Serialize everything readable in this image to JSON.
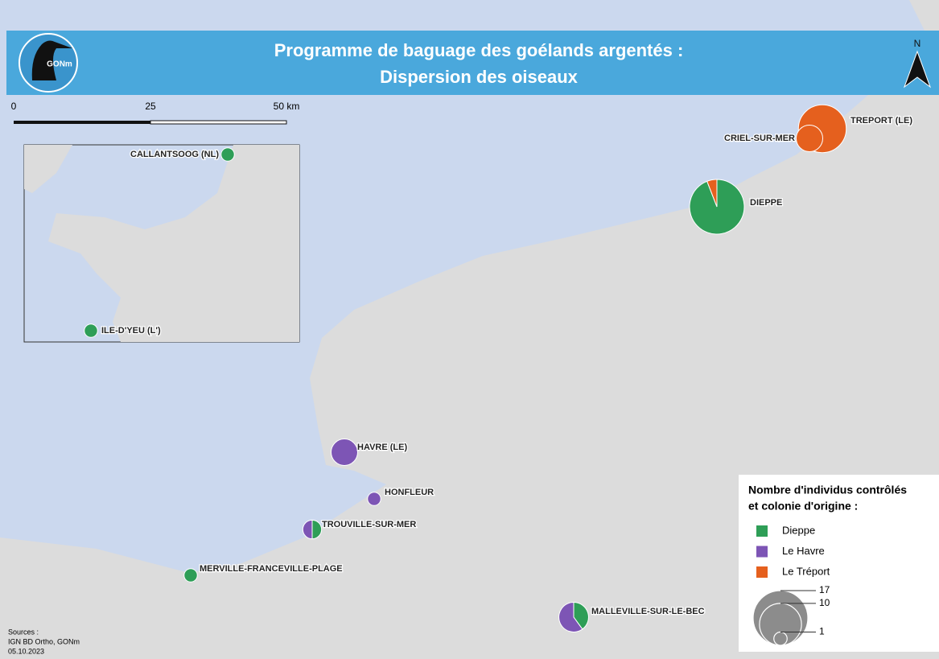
{
  "header": {
    "title_lines": [
      "Programme de baguage des goélands argentés :",
      "Dispersion des oiseaux"
    ],
    "logo": "GONm",
    "north": "N"
  },
  "scale": {
    "labels": [
      "0",
      "25",
      "50 km"
    ]
  },
  "sites": [
    {
      "name": "TREPORT (LE)",
      "counts": [
        0,
        0,
        13
      ]
    },
    {
      "name": "CRIEL-SUR-MER",
      "counts": [
        0,
        0,
        4
      ]
    },
    {
      "name": "DIEPPE",
      "counts": [
        16,
        0,
        1
      ]
    },
    {
      "name": "HAVRE (LE)",
      "counts": [
        0,
        4,
        0
      ]
    },
    {
      "name": "HONFLEUR",
      "counts": [
        0,
        1,
        0
      ]
    },
    {
      "name": "TROUVILLE-SUR-MER",
      "counts": [
        1,
        1,
        0
      ]
    },
    {
      "name": "MERVILLE-FRANCEVILLE-PLAGE",
      "counts": [
        1,
        0,
        0
      ]
    },
    {
      "name": "MALLEVILLE-SUR-LE-BEC",
      "counts": [
        2,
        3,
        0
      ]
    }
  ],
  "inset": {
    "sites": [
      {
        "name": "CALLANTSOOG (NL)",
        "counts": [
          1,
          0,
          0
        ]
      },
      {
        "name": "ILE-D'YEU (L')",
        "counts": [
          1,
          0,
          0
        ]
      }
    ]
  },
  "legend": {
    "title_lines": [
      "Nombre d'individus contrôlés",
      "et colonie d'origine :"
    ],
    "colonies": [
      {
        "name": "Dieppe",
        "color": "#2e9e57"
      },
      {
        "name": "Le Havre",
        "color": "#7d55b5"
      },
      {
        "name": "Le Tréport",
        "color": "#e5601e"
      }
    ],
    "sizes": [
      17,
      10,
      1
    ]
  },
  "sources": [
    "Sources :",
    "IGN BD Ortho, GONm",
    "05.10.2023"
  ]
}
